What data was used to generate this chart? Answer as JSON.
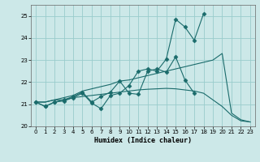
{
  "title": "",
  "xlabel": "Humidex (Indice chaleur)",
  "bg_color": "#cce8e8",
  "grid_color": "#99cccc",
  "line_color": "#1a6b6b",
  "x": [
    0,
    1,
    2,
    3,
    4,
    5,
    6,
    7,
    8,
    9,
    10,
    11,
    12,
    13,
    14,
    15,
    16,
    17,
    18,
    19,
    20,
    21,
    22,
    23
  ],
  "line1": [
    21.1,
    20.9,
    21.1,
    21.15,
    21.3,
    21.5,
    21.05,
    20.8,
    21.4,
    21.5,
    21.85,
    22.5,
    22.6,
    22.5,
    23.05,
    24.85,
    24.5,
    23.9,
    25.1,
    null,
    null,
    null,
    null,
    null
  ],
  "line2": [
    21.1,
    20.9,
    21.1,
    21.2,
    21.35,
    21.55,
    21.1,
    21.35,
    21.55,
    22.05,
    21.5,
    21.45,
    22.5,
    22.6,
    22.45,
    23.15,
    22.1,
    21.5,
    null,
    null,
    null,
    null,
    null,
    null
  ],
  "line3": [
    21.1,
    21.1,
    21.2,
    21.3,
    21.4,
    21.6,
    21.7,
    21.8,
    21.9,
    22.05,
    22.1,
    22.2,
    22.3,
    22.4,
    22.5,
    22.6,
    22.7,
    22.8,
    22.9,
    23.0,
    23.3,
    20.6,
    20.3,
    20.2
  ],
  "line4": [
    21.1,
    21.1,
    21.2,
    21.2,
    21.3,
    21.35,
    21.4,
    21.45,
    21.5,
    21.55,
    21.6,
    21.65,
    21.68,
    21.7,
    21.72,
    21.7,
    21.65,
    21.6,
    21.5,
    21.2,
    20.9,
    20.5,
    20.25,
    20.2
  ],
  "ylim": [
    20.0,
    25.5
  ],
  "yticks": [
    20,
    21,
    22,
    23,
    24,
    25
  ],
  "xticks": [
    0,
    1,
    2,
    3,
    4,
    5,
    6,
    7,
    8,
    9,
    10,
    11,
    12,
    13,
    14,
    15,
    16,
    17,
    18,
    19,
    20,
    21,
    22,
    23
  ]
}
